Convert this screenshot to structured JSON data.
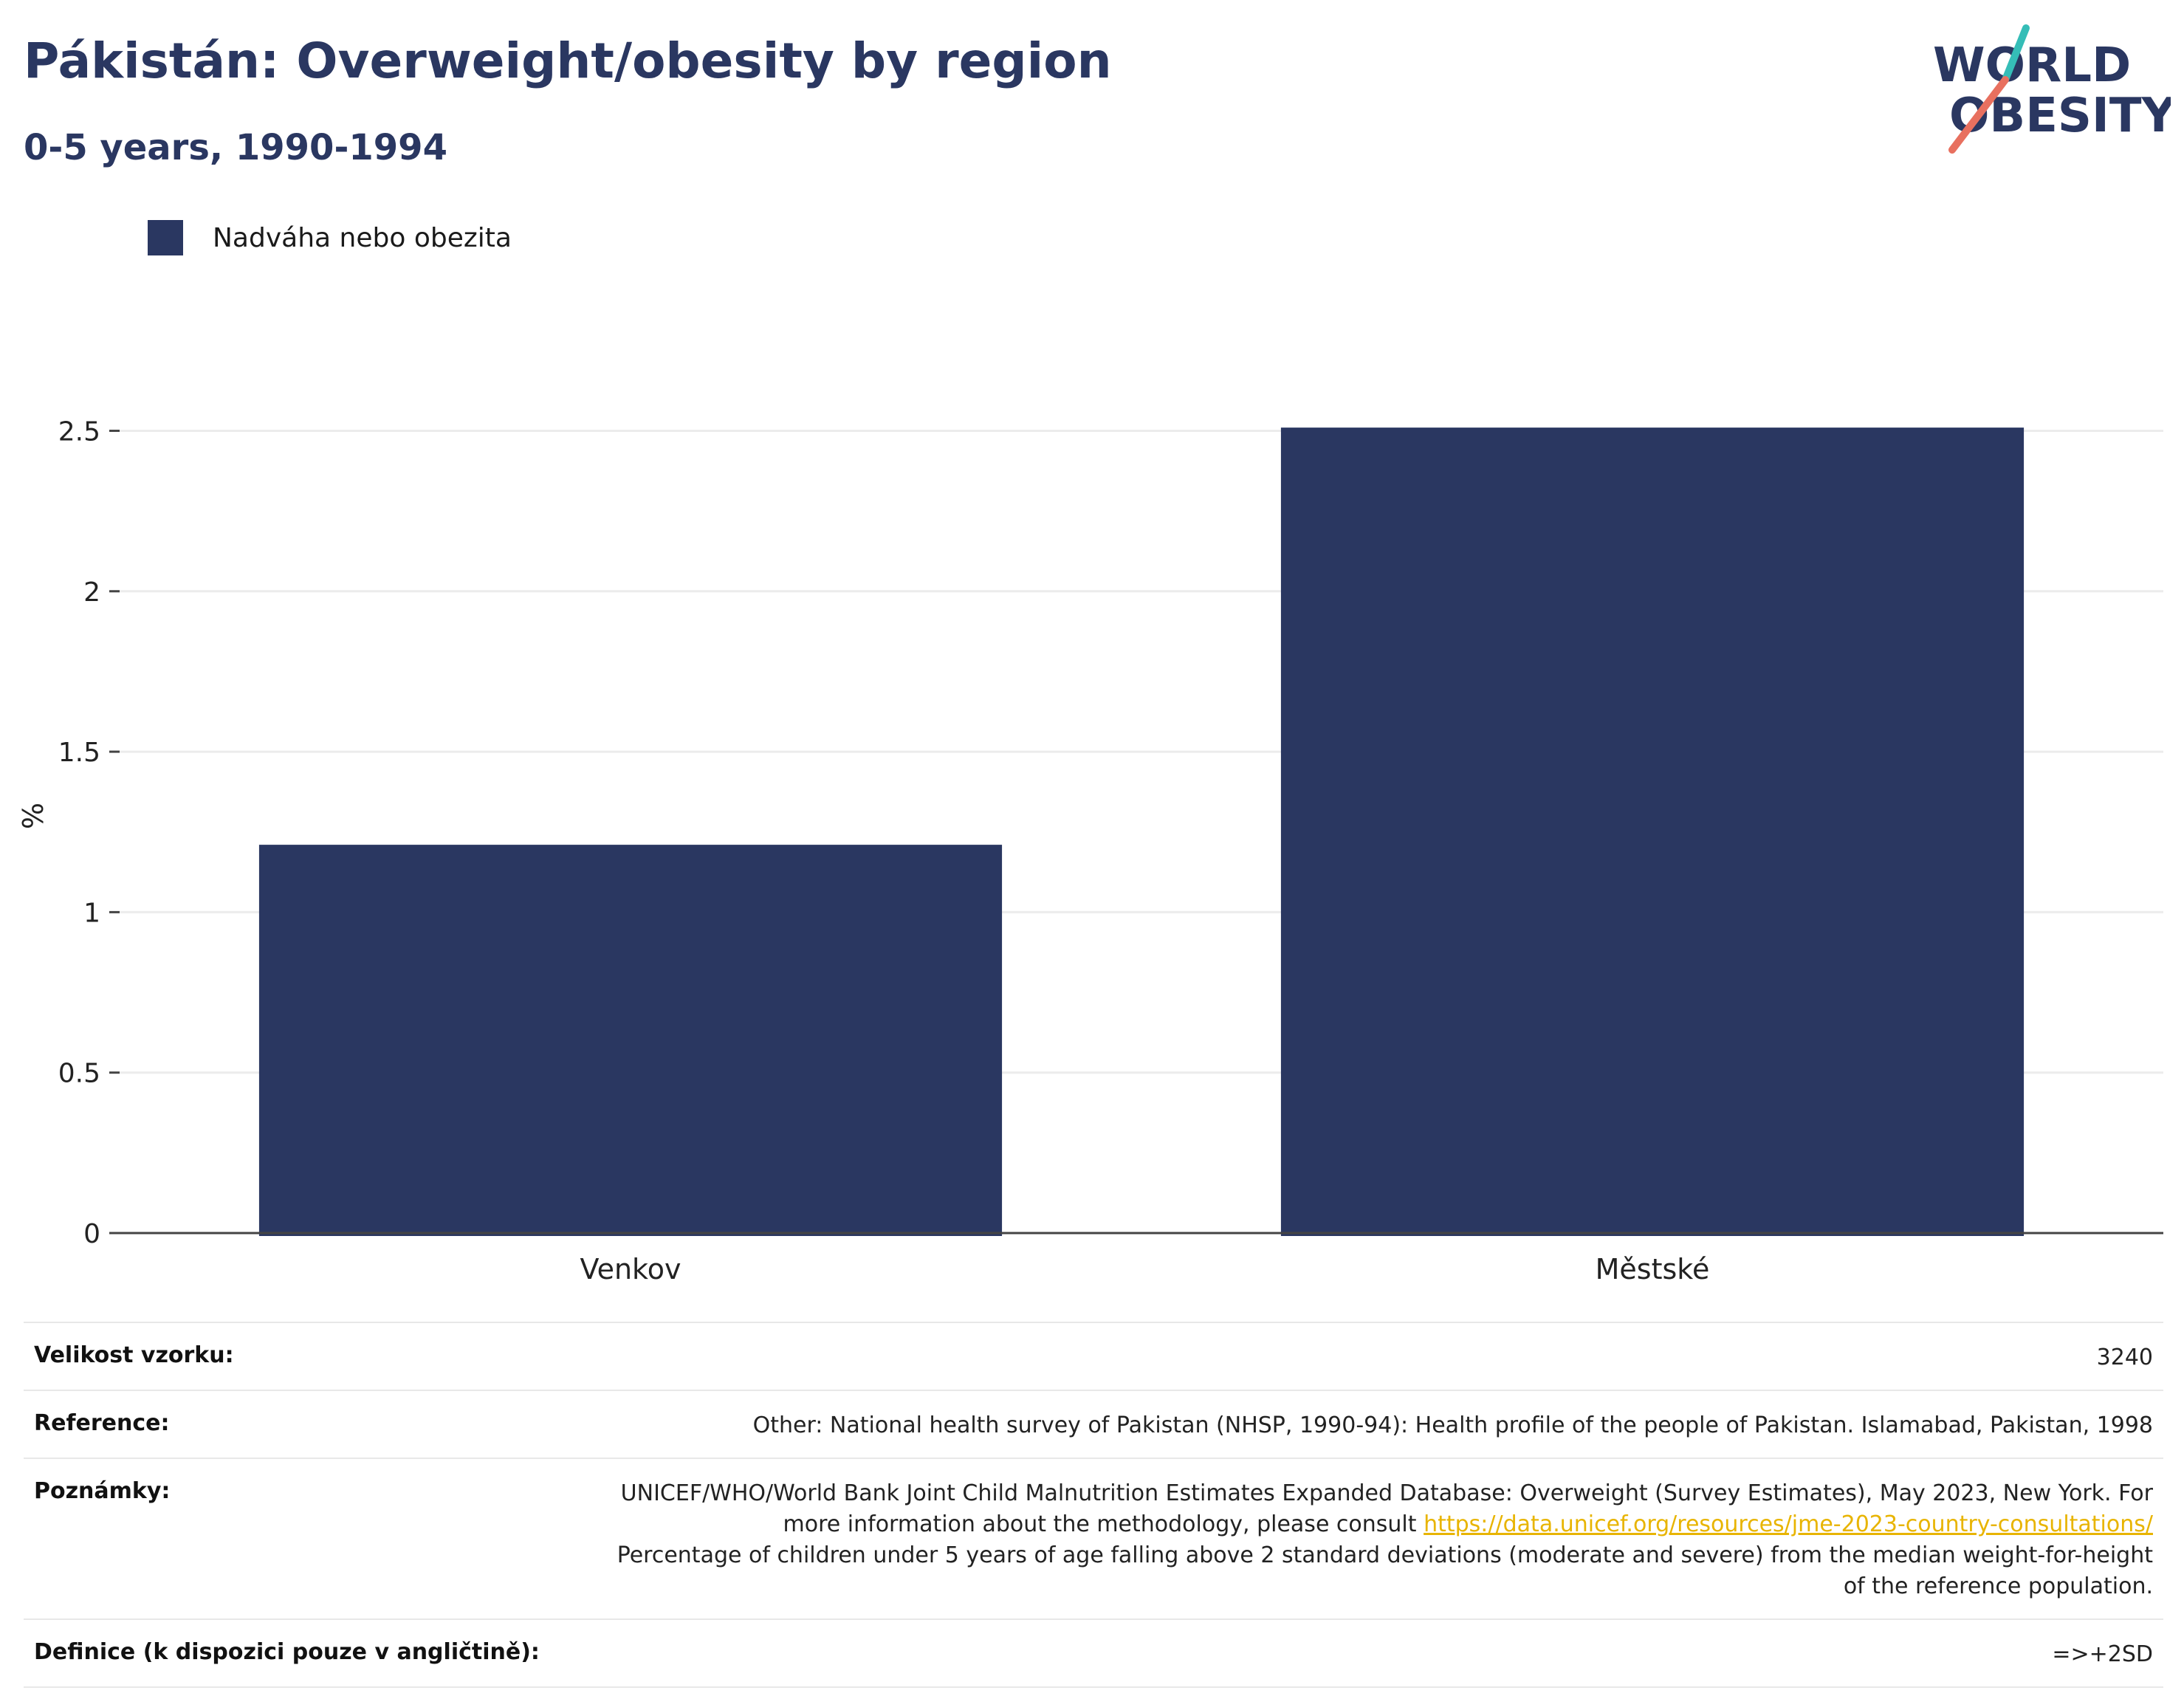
{
  "header": {
    "title": "Pákistán: Overweight/obesity by region",
    "subtitle": "0-5 years, 1990-1994"
  },
  "logo": {
    "line1": "WORLD",
    "line2": "OBESITY",
    "icon": "world-obesity-logo"
  },
  "colors": {
    "bar": "#2a3761",
    "title": "#2a3761",
    "link": "#e8b400",
    "grid": "#ececec"
  },
  "chart_data": {
    "type": "bar",
    "categories": [
      "Venkov",
      "Městské"
    ],
    "series": [
      {
        "name": "Nadváha nebo obezita",
        "values": [
          1.21,
          2.51
        ]
      }
    ],
    "ylabel": "%",
    "xlabel": "",
    "ylim": [
      0,
      2.6
    ],
    "yticks": [
      0,
      0.5,
      1,
      1.5,
      2,
      2.5
    ],
    "ytick_labels": [
      "0",
      "0.5",
      "1",
      "1.5",
      "2",
      "2.5"
    ],
    "grid": true,
    "legend": "top-left"
  },
  "meta": {
    "sample_label": "Velikost vzorku:",
    "sample_value": "3240",
    "reference_label": "Reference:",
    "reference_value": "Other: National health survey of Pakistan (NHSP, 1990-94): Health profile of the people of Pakistan. Islamabad, Pakistan, 1998",
    "notes_label": "Poznámky:",
    "notes_text1": "UNICEF/WHO/World Bank Joint Child Malnutrition Estimates Expanded Database: Overweight (Survey Estimates), May 2023, New York. For more information about the methodology, please consult",
    "notes_link": "https://data.unicef.org/resources/jme-2023-country-consultations/",
    "notes_text2": "Percentage of children under 5 years of age falling above 2 standard deviations (moderate and severe) from the median weight-for-height of the reference population.",
    "definition_label": "Definice (k dispozici pouze v angličtině):",
    "definition_value": "=>+2SD"
  }
}
